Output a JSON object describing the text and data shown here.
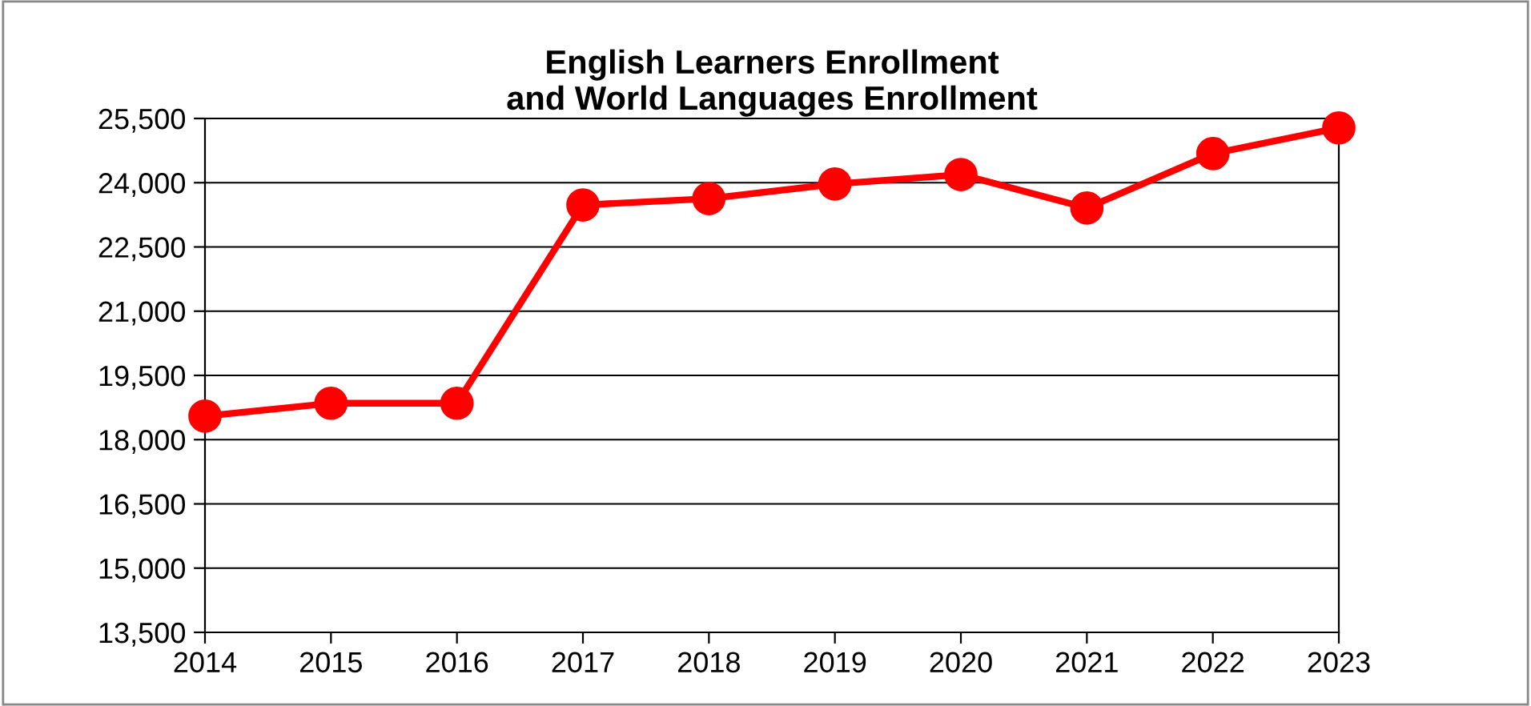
{
  "chart_data": {
    "type": "line",
    "title": "English Learners Enrollment\nand World Languages Enrollment",
    "x": [
      2014,
      2015,
      2016,
      2017,
      2018,
      2019,
      2020,
      2021,
      2022,
      2023
    ],
    "series": [
      {
        "color": "#ff0000",
        "values": [
          18550,
          18850,
          18850,
          23480,
          23630,
          23970,
          24190,
          23410,
          24680,
          25280
        ]
      }
    ],
    "xlim": [
      2014,
      2023
    ],
    "xticks": [
      2014,
      2015,
      2016,
      2017,
      2018,
      2019,
      2020,
      2021,
      2022,
      2023
    ],
    "ylim": [
      13500,
      25500
    ],
    "yticks": [
      {
        "value": 13500,
        "label": "13,500"
      },
      {
        "value": 15000,
        "label": "15,000"
      },
      {
        "value": 16500,
        "label": "16,500"
      },
      {
        "value": 18000,
        "label": "18,000"
      },
      {
        "value": 19500,
        "label": "19,500"
      },
      {
        "value": 21000,
        "label": "21,000"
      },
      {
        "value": 22500,
        "label": "22,500"
      },
      {
        "value": 24000,
        "label": "24,000"
      },
      {
        "value": 25500,
        "label": "25,500"
      }
    ],
    "grid": "y",
    "marker": "circle",
    "line_style": "solid",
    "legend": false
  }
}
